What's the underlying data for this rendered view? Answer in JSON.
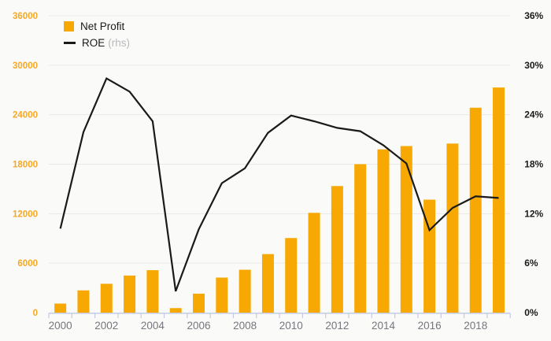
{
  "chart_data": {
    "type": "bar+line-combo",
    "title": "",
    "categories": [
      2000,
      2001,
      2002,
      2003,
      2004,
      2005,
      2006,
      2007,
      2008,
      2009,
      2010,
      2011,
      2012,
      2013,
      2014,
      2015,
      2016,
      2017,
      2018,
      2019
    ],
    "series": [
      {
        "name": "Net Profit",
        "type": "bar",
        "axis": "left",
        "color": "#f7a802",
        "values": [
          1100,
          2700,
          3500,
          4500,
          5150,
          550,
          2300,
          4250,
          5200,
          7100,
          9050,
          12100,
          15350,
          18000,
          19800,
          20200,
          13700,
          20500,
          24850,
          27300
        ]
      },
      {
        "name": "ROE",
        "rhs_note": "(rhs)",
        "type": "line",
        "axis": "right",
        "color": "#1a1a1a",
        "values": [
          10.2,
          21.9,
          28.4,
          26.8,
          23.2,
          2.6,
          10.1,
          15.7,
          17.5,
          21.8,
          23.9,
          23.2,
          22.4,
          22.0,
          20.3,
          18.1,
          10.0,
          12.7,
          14.1,
          13.9
        ]
      }
    ],
    "y_left": {
      "min": 0,
      "max": 36000,
      "step": 6000,
      "tick_labels": [
        "0",
        "6000",
        "12000",
        "18000",
        "24000",
        "30000",
        "36000"
      ],
      "label_color": "#f7a823"
    },
    "y_right": {
      "min": 0,
      "max": 36,
      "step": 6,
      "tick_labels": [
        "0%",
        "6%",
        "12%",
        "18%",
        "24%",
        "30%",
        "36%"
      ],
      "label_color": "#1a1a1a"
    },
    "x_axis": {
      "tick_labels": [
        "2000",
        "2002",
        "2004",
        "2006",
        "2008",
        "2010",
        "2012",
        "2014",
        "2016",
        "2018"
      ],
      "label_every": 2,
      "label_color": "#76767e",
      "axis_color": "#c3cce2"
    },
    "legend_position": "top-left",
    "grid": true,
    "grid_color": "#e9e9e7",
    "background": "#fafaf8"
  }
}
